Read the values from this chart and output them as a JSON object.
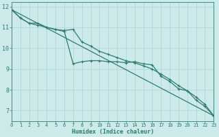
{
  "xlabel": "Humidex (Indice chaleur)",
  "background_color": "#cceae8",
  "line_color": "#2d7b72",
  "grid_color": "#aad4d0",
  "xlim": [
    0,
    23
  ],
  "ylim": [
    6.5,
    12.2
  ],
  "xticks": [
    0,
    1,
    2,
    3,
    4,
    5,
    6,
    7,
    8,
    9,
    10,
    11,
    12,
    13,
    14,
    15,
    16,
    17,
    18,
    19,
    20,
    21,
    22,
    23
  ],
  "yticks": [
    7,
    8,
    9,
    10,
    11,
    12
  ],
  "line1_x": [
    0,
    1,
    2,
    3,
    4,
    5,
    6,
    7,
    8,
    9,
    10,
    11,
    12,
    13,
    14,
    15,
    16,
    17,
    18,
    19,
    20,
    21,
    22,
    23
  ],
  "line1_y": [
    11.85,
    11.45,
    11.2,
    11.1,
    11.0,
    10.9,
    10.8,
    9.25,
    9.35,
    9.4,
    9.4,
    9.35,
    9.35,
    9.3,
    9.35,
    9.25,
    9.2,
    8.65,
    8.4,
    8.05,
    7.95,
    7.5,
    7.2,
    6.75
  ],
  "line2_x": [
    0,
    1,
    2,
    3,
    4,
    5,
    6,
    7,
    8,
    9,
    10,
    11,
    12,
    13,
    14,
    15,
    16,
    17,
    18,
    19,
    20,
    21,
    22,
    23
  ],
  "line2_y": [
    11.85,
    11.45,
    11.2,
    11.2,
    11.0,
    10.9,
    10.85,
    10.9,
    10.3,
    10.1,
    9.85,
    9.7,
    9.55,
    9.4,
    9.3,
    9.15,
    9.0,
    8.75,
    8.5,
    8.2,
    7.95,
    7.65,
    7.3,
    6.75
  ],
  "line3_x": [
    0,
    23
  ],
  "line3_y": [
    11.85,
    6.75
  ],
  "marker": "+",
  "marker_size": 3.5,
  "linewidth": 0.9,
  "tick_fontsize": 5,
  "xlabel_fontsize": 6
}
